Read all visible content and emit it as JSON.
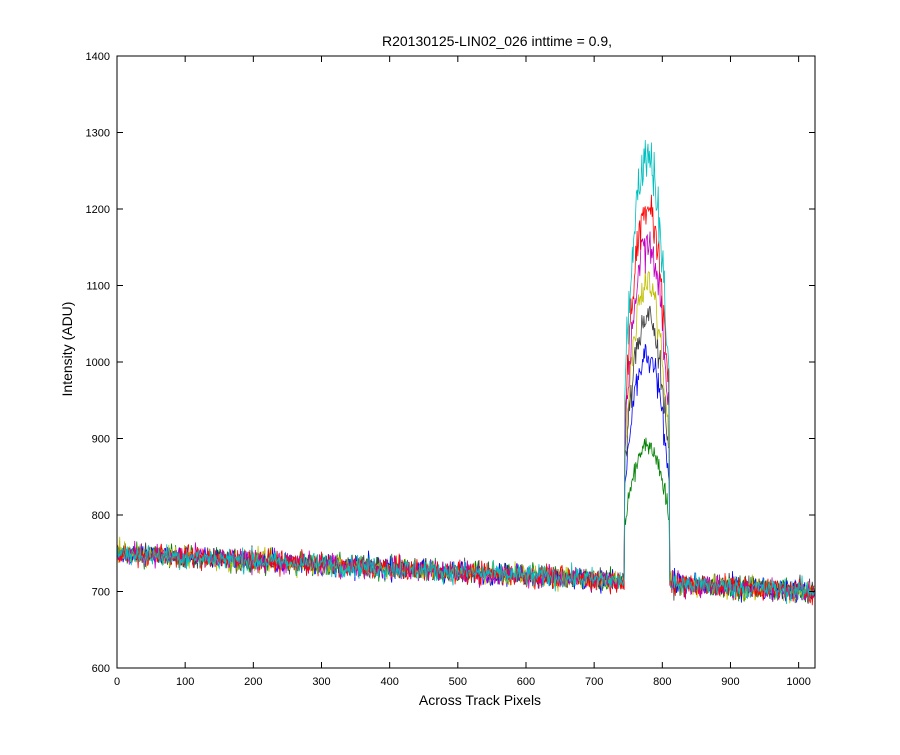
{
  "chart_data": {
    "type": "line",
    "title": "R20130125-LIN02_026 inttime = 0.9,",
    "xlabel": "Across Track Pixels",
    "ylabel": "Intensity (ADU)",
    "xlim": [
      0,
      1024
    ],
    "ylim": [
      600,
      1400
    ],
    "xticks": [
      0,
      100,
      200,
      300,
      400,
      500,
      600,
      700,
      800,
      900,
      1000
    ],
    "yticks": [
      600,
      700,
      800,
      900,
      1000,
      1100,
      1200,
      1300,
      1400
    ],
    "grid": false,
    "legend": "none",
    "baseline": {
      "start_value": 750,
      "end_value": 700,
      "noise_amplitude": 14
    },
    "spot": {
      "x_start": 745,
      "x_end": 810,
      "x_center": 778
    },
    "series": [
      {
        "color": "#008000",
        "peak": 890
      },
      {
        "color": "#0000ff",
        "peak": 1005
      },
      {
        "color": "#404040",
        "peak": 1060
      },
      {
        "color": "#bfbf00",
        "peak": 1105
      },
      {
        "color": "#bf00bf",
        "peak": 1155
      },
      {
        "color": "#ff0000",
        "peak": 1205
      },
      {
        "color": "#00bfbf",
        "peak": 1275
      }
    ]
  }
}
